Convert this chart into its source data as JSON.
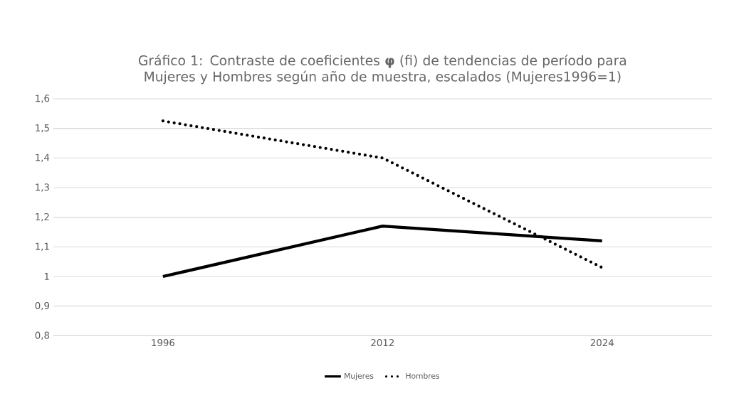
{
  "chart_data": {
    "type": "line",
    "title": "Gráfico 1: Contraste de coeficientes **φ** (fi) de tendencias de período para Mujeres y Hombres según año de muestra, escalados (Mujeres1996=1)",
    "categories": [
      "1996",
      "2012",
      "2024"
    ],
    "series": [
      {
        "name": "Mujeres",
        "color": "#000000",
        "values": [
          1.0,
          1.17,
          1.12
        ],
        "line_style": "solid"
      },
      {
        "name": "Hombres",
        "color": "#000000",
        "values": [
          1.525,
          1.4,
          1.03
        ],
        "line_style": "dotted"
      }
    ],
    "ylim": [
      0.8,
      1.6
    ],
    "yticks": [
      {
        "value": 0.8,
        "label": "0,8"
      },
      {
        "value": 0.9,
        "label": "0,9"
      },
      {
        "value": 1,
        "label": "1"
      },
      {
        "value": 1.1,
        "label": "1,1"
      },
      {
        "value": 1.2,
        "label": "1,2"
      },
      {
        "value": 1.3,
        "label": "1,3"
      },
      {
        "value": 1.4,
        "label": "1,4"
      },
      {
        "value": 1.5,
        "label": "1,5"
      },
      {
        "value": 1.6,
        "label": "1,6"
      }
    ],
    "grid": "y",
    "legend": "bottom",
    "marker": "none"
  }
}
